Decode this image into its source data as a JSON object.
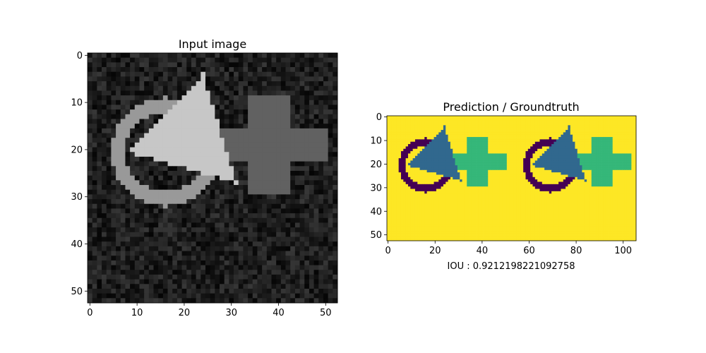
{
  "panels": {
    "input": {
      "title": "Input image"
    },
    "prediction": {
      "title": "Prediction / Groundtruth",
      "caption": "IOU : 0.9212198221092758"
    }
  },
  "chart_data": [
    {
      "type": "heatmap",
      "title": "Input image",
      "xlabel": "",
      "ylabel": "",
      "colormap": "gray",
      "xlim": [
        0,
        53
      ],
      "ylim": [
        53,
        0
      ],
      "xticks": [
        0,
        10,
        20,
        30,
        40,
        50
      ],
      "yticks": [
        0,
        10,
        20,
        30,
        40,
        50
      ],
      "background": {
        "mean": 0.12,
        "noise": 0.1
      },
      "shapes": [
        {
          "shape": "ring",
          "label": "circle",
          "value": 0.6,
          "center": [
            16,
            20.5
          ],
          "r_outer": 11.5,
          "r_inner": 8.5
        },
        {
          "shape": "triangle",
          "label": "triangle",
          "value": 0.78,
          "points": [
            [
              24,
              4
            ],
            [
              8,
              20.5
            ],
            [
              31,
              27
            ]
          ]
        },
        {
          "shape": "cross",
          "label": "plus",
          "value": 0.38,
          "center": [
            38,
            19
          ],
          "bar_w": 8,
          "bar_h": 6,
          "half_len": 16
        }
      ]
    },
    {
      "type": "heatmap",
      "title": "Prediction / Groundtruth",
      "caption": "IOU : 0.9212198221092758",
      "colormap": "viridis",
      "xlim": [
        0,
        106
      ],
      "ylim": [
        53,
        0
      ],
      "xticks": [
        0,
        20,
        40,
        60,
        80,
        100
      ],
      "yticks": [
        0,
        10,
        20,
        30,
        40,
        50
      ],
      "colors": {
        "background": "#fde725",
        "circle": "#440154",
        "triangle": "#31688e",
        "plus": "#35b779"
      },
      "halves": [
        {
          "name": "prediction",
          "x_offset": 0
        },
        {
          "name": "groundtruth",
          "x_offset": 53
        }
      ]
    }
  ]
}
